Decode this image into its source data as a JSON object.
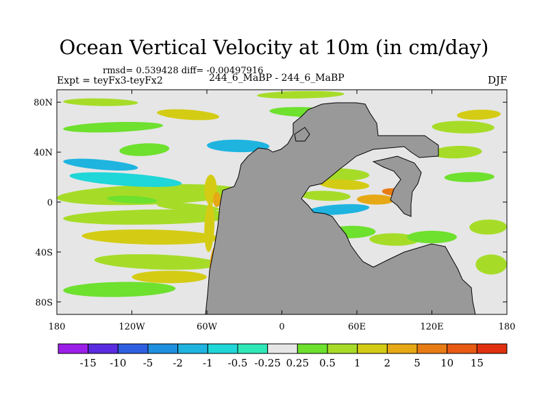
{
  "chart_data": {
    "type": "heatmap",
    "title": "Ocean Vertical Velocity at 10m (in cm/day)",
    "stats_text": "rmsd= 0.539428 diff= -0.00497916",
    "experiment_label": "Expt = teyFx3-teyFx2",
    "center_label": "244_6_MaBP - 244_6_MaBP",
    "season": "DJF",
    "x_axis": {
      "min": -180,
      "max": 180,
      "ticks": [
        -180,
        -120,
        -60,
        0,
        60,
        120,
        180
      ],
      "tick_labels": [
        "180",
        "120W",
        "60W",
        "0",
        "60E",
        "120E",
        "180"
      ]
    },
    "y_axis": {
      "min": -90,
      "max": 90,
      "ticks": [
        80,
        40,
        0,
        -40,
        -80
      ],
      "tick_labels": [
        "80N",
        "40N",
        "0",
        "40S",
        "80S"
      ]
    },
    "colorbar": {
      "labels": [
        "-15",
        "-10",
        "-5",
        "-2",
        "-1",
        "-0.5",
        "-0.25",
        "0.25",
        "0.5",
        "1",
        "2",
        "5",
        "10",
        "15"
      ],
      "colors": [
        "#9b1fe8",
        "#5a2be0",
        "#2f5fe0",
        "#1f8fdf",
        "#1fb4e0",
        "#1fd6d8",
        "#2ee8b8",
        "#e6e6e6",
        "#6ee02e",
        "#a6dc28",
        "#d4cc14",
        "#e6a814",
        "#e87c14",
        "#e85a14",
        "#e0300f"
      ]
    },
    "colors": {
      "land": "#999999",
      "near_zero": "#e6e6e6"
    }
  }
}
